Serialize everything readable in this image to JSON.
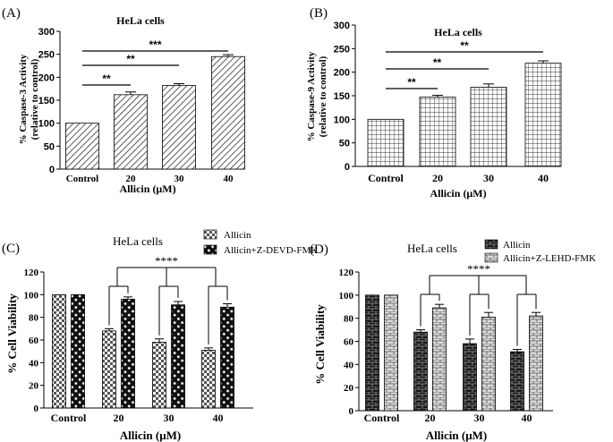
{
  "figure": {
    "panels": [
      "(A)",
      "(B)",
      "(C)",
      "(D)"
    ]
  },
  "chart_data": [
    {
      "panel": "(A)",
      "type": "bar",
      "title": "HeLa cells",
      "xlabel": "Allicin (μM)",
      "ylabel": [
        "% Caspase-3 Activity",
        "(relative to control)"
      ],
      "categories": [
        "Control",
        "20",
        "30",
        "40"
      ],
      "values": [
        100,
        162,
        182,
        245
      ],
      "errors": [
        0,
        6,
        4,
        4
      ],
      "ylim": [
        0,
        300
      ],
      "yticks": [
        "0",
        "50",
        "100",
        "150",
        "200",
        "250",
        "300"
      ],
      "pattern": "diagonal",
      "significance": [
        {
          "label": "**",
          "from": 0,
          "to": 1
        },
        {
          "label": "**",
          "from": 0,
          "to": 2
        },
        {
          "label": "***",
          "from": 0,
          "to": 3
        }
      ]
    },
    {
      "panel": "(B)",
      "type": "bar",
      "title": "HeLa cells",
      "xlabel": "Allicin (μM)",
      "ylabel": [
        "% Caspase-9 Activity",
        "(relative to control)"
      ],
      "categories": [
        "Control",
        "20",
        "30",
        "40"
      ],
      "values": [
        100,
        147,
        168,
        219
      ],
      "errors": [
        0,
        4,
        7,
        5
      ],
      "ylim": [
        0,
        300
      ],
      "yticks": [
        "0",
        "50",
        "100",
        "150",
        "200",
        "250",
        "300"
      ],
      "pattern": "grid",
      "significance": [
        {
          "label": "**",
          "from": 0,
          "to": 1
        },
        {
          "label": "**",
          "from": 0,
          "to": 2
        },
        {
          "label": "**",
          "from": 0,
          "to": 3
        }
      ]
    },
    {
      "panel": "(C)",
      "type": "bar",
      "title": "HeLa cells",
      "xlabel": "Allicin (μM)",
      "ylabel": "% Cell Viability",
      "categories": [
        "Control",
        "20",
        "30",
        "40"
      ],
      "series": [
        {
          "name": "Allicin",
          "values": [
            100,
            68,
            58,
            51
          ],
          "errors": [
            0,
            2,
            3,
            2
          ],
          "pattern": "checker-light"
        },
        {
          "name": "Allicin+Z-DEVD-FMK",
          "values": [
            100,
            96,
            91,
            89
          ],
          "errors": [
            0,
            2,
            3,
            3
          ],
          "pattern": "checker-dark"
        }
      ],
      "ylim": [
        0,
        120
      ],
      "yticks": [
        "0",
        "20",
        "40",
        "60",
        "80",
        "100",
        "120"
      ],
      "significance_label": "****"
    },
    {
      "panel": "(D)",
      "type": "bar",
      "title": "HeLa cells",
      "xlabel": "Allicin (μM)",
      "ylabel": "% Cell Viability",
      "categories": [
        "Control",
        "20",
        "30",
        "40"
      ],
      "series": [
        {
          "name": "Allicin",
          "values": [
            100,
            68,
            58,
            51
          ],
          "errors": [
            0,
            2,
            4,
            2
          ],
          "pattern": "brick-dark"
        },
        {
          "name": "Allicin+Z-LEHD-FMK",
          "values": [
            100,
            89,
            81,
            82
          ],
          "errors": [
            0,
            3,
            4,
            3
          ],
          "pattern": "brick-light"
        }
      ],
      "ylim": [
        0,
        120
      ],
      "yticks": [
        "0",
        "20",
        "40",
        "60",
        "80",
        "100",
        "120"
      ],
      "significance_label": "****"
    }
  ]
}
